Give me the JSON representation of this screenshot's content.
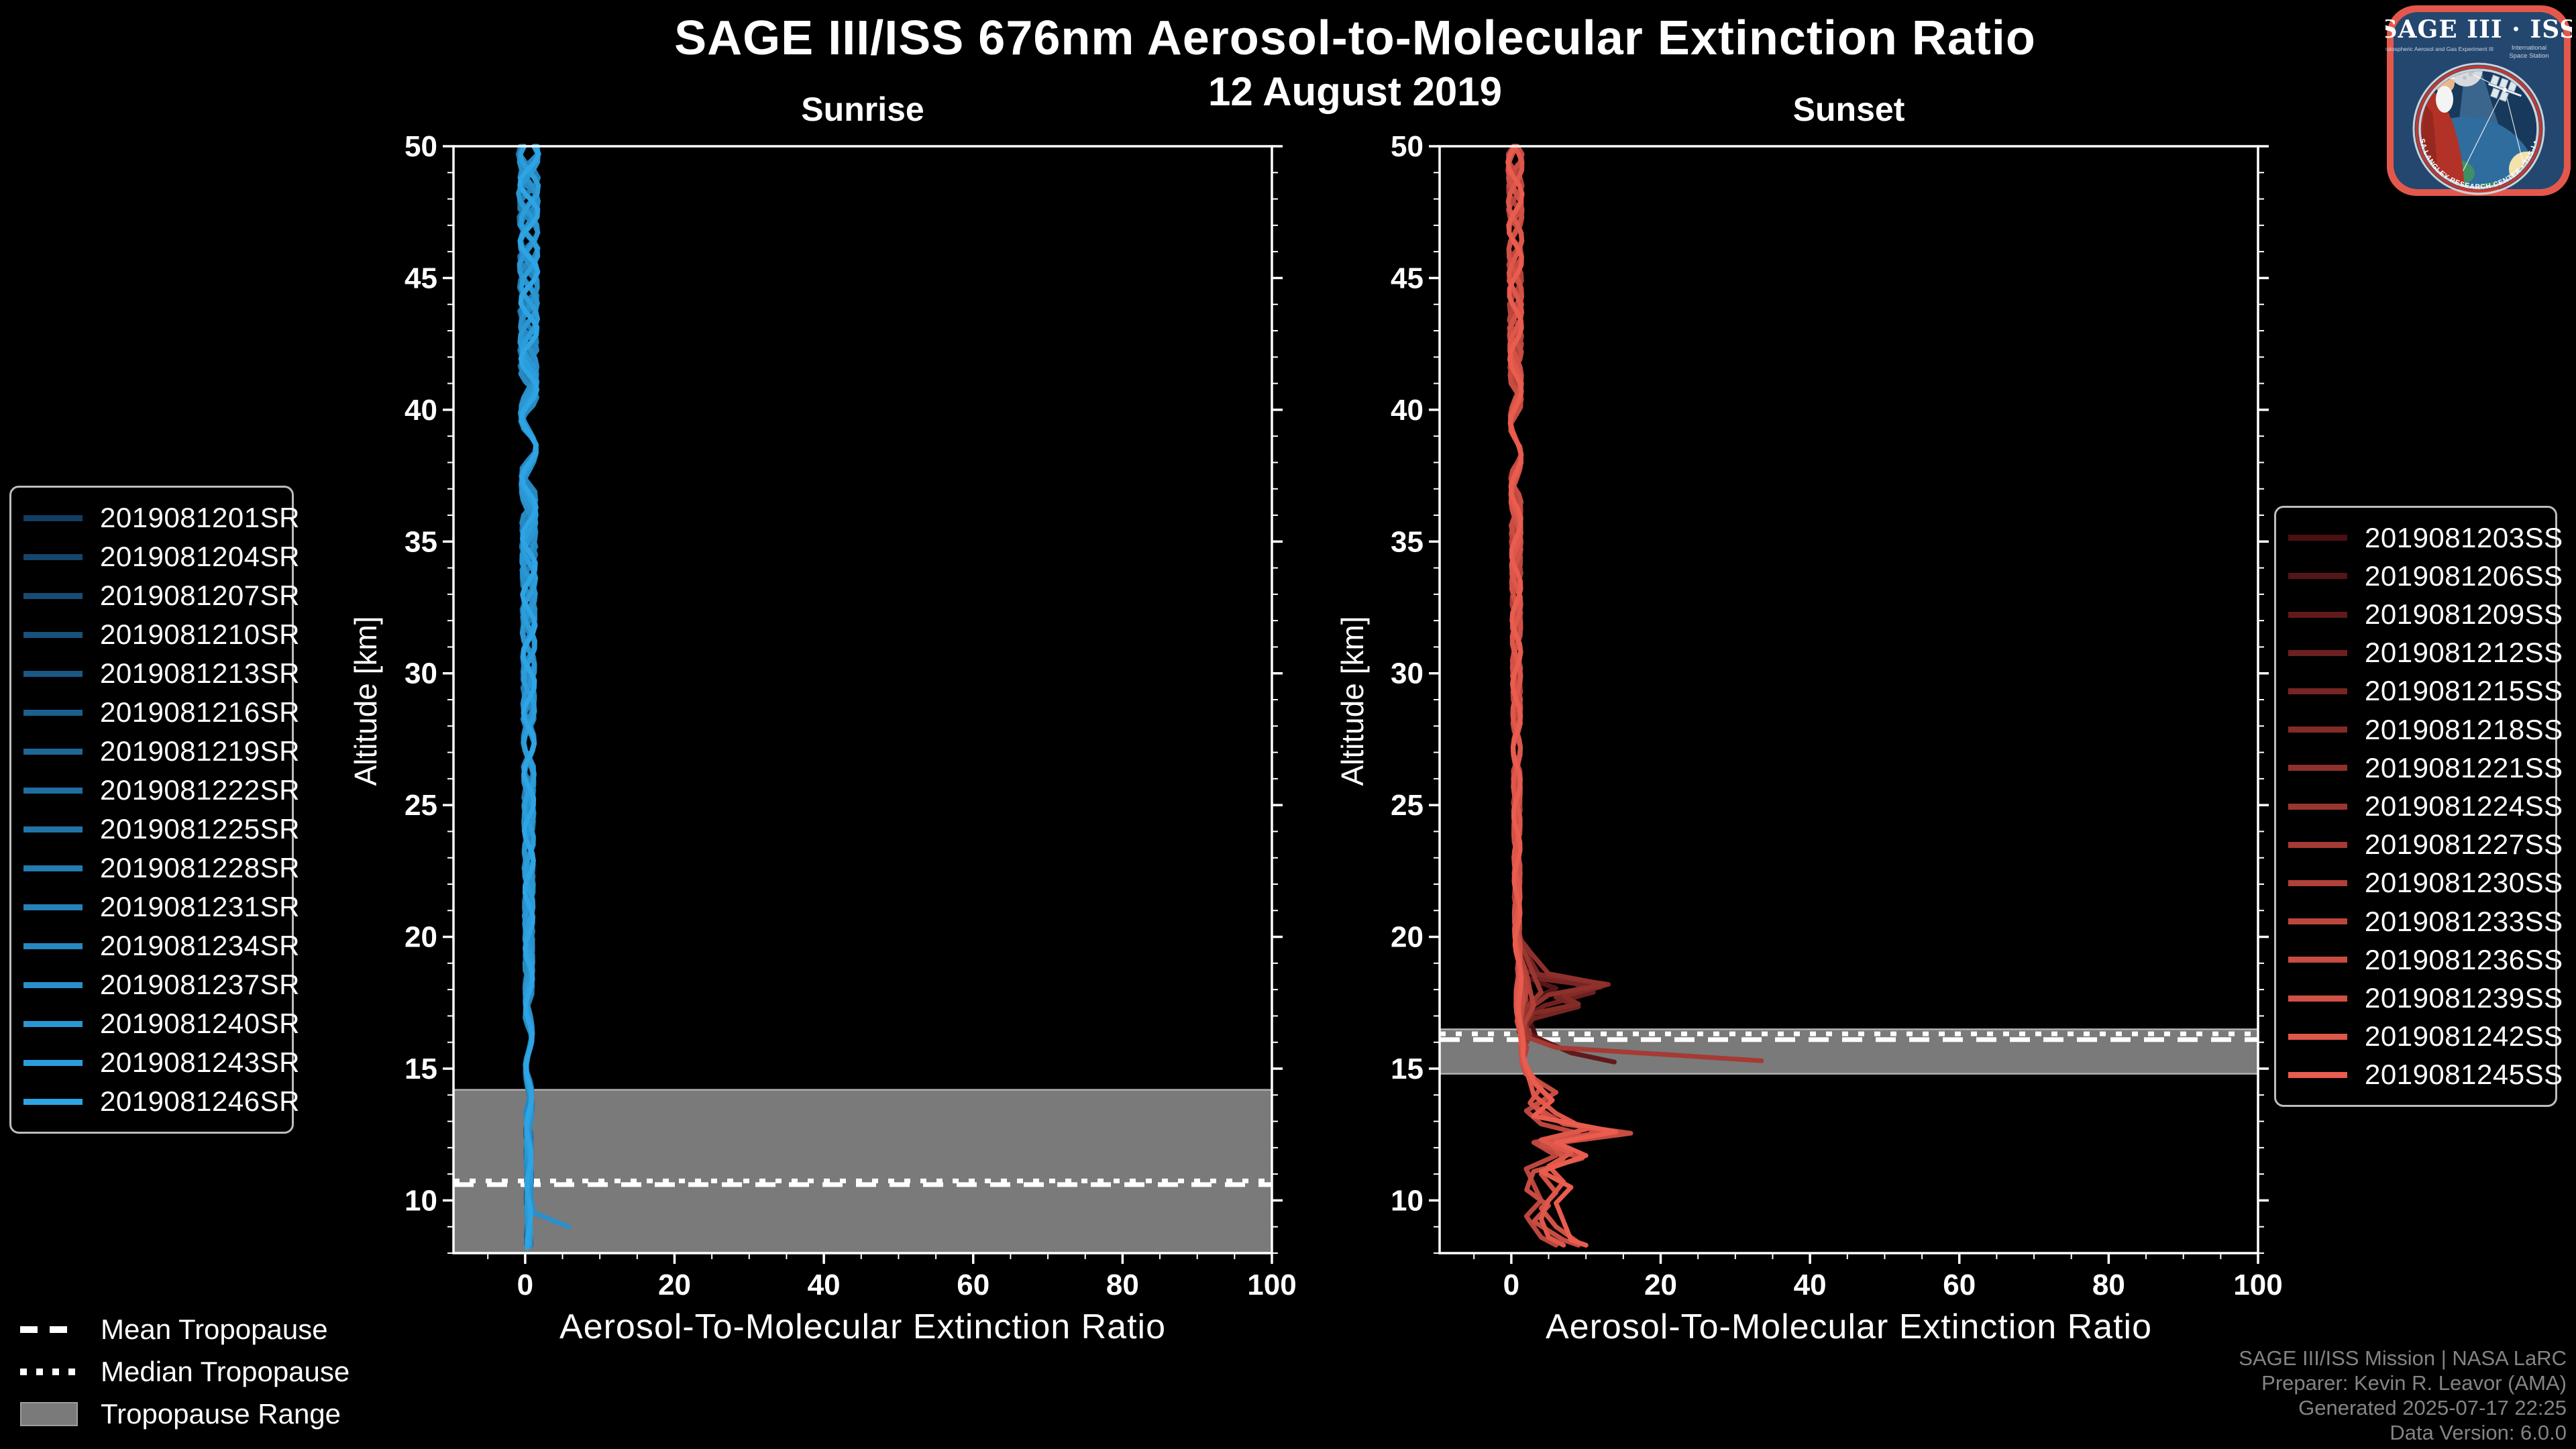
{
  "header": {
    "title": "SAGE III/ISS 676nm Aerosol-to-Molecular Extinction Ratio",
    "subtitle": "12 August 2019"
  },
  "footer": {
    "lines": [
      "SAGE III/ISS Mission | NASA LaRC",
      "Preparer: Kevin R. Leavor (AMA)",
      "Generated 2025-07-17 22:25",
      "Data Version: 6.0.0"
    ]
  },
  "logo": {
    "title": "SAGE III · ISS",
    "subtitle_left": "Stratospheric Aerosol and Gas Experiment III",
    "subtitle_right_1": "International",
    "subtitle_right_2": "Space Station",
    "arc_text": "• NASA LANGLEY RESEARCH CENTER • TAS-I • ESA"
  },
  "tropopause_legend": {
    "mean_label": "Mean Tropopause",
    "median_label": "Median Tropopause",
    "range_label": "Tropopause Range"
  },
  "colors": {
    "background": "#000000",
    "axis": "#ffffff",
    "tropopause_band": "#7a7a7a",
    "footer_text": "#848484"
  },
  "chart_data": [
    {
      "type": "line",
      "panel": "sunrise",
      "title": "Sunrise",
      "xlabel": "Aerosol-To-Molecular Extinction Ratio",
      "ylabel": "Altitude [km]",
      "xlim": [
        -9.6,
        100
      ],
      "ylim": [
        8.0,
        50
      ],
      "xticks": [
        0,
        20,
        40,
        60,
        80,
        100
      ],
      "yticks": [
        10,
        15,
        20,
        25,
        30,
        35,
        40,
        45,
        50
      ],
      "grid": false,
      "legend_position": "outside-left",
      "tropopause": {
        "mean_km": 10.6,
        "median_km": 10.74,
        "range_km": [
          8.0,
          14.2
        ]
      },
      "series": [
        {
          "label": "2019081201SR",
          "color": "#133e62",
          "profile": [
            [
              50,
              0.5
            ],
            [
              8.3,
              0.5
            ]
          ]
        },
        {
          "label": "2019081204SR",
          "color": "#15456b",
          "profile": [
            [
              50,
              0.4
            ],
            [
              8.3,
              0.6
            ]
          ]
        },
        {
          "label": "2019081207SR",
          "color": "#174c73",
          "profile": [
            [
              50,
              0.6
            ],
            [
              8.3,
              0.4
            ]
          ]
        },
        {
          "label": "2019081210SR",
          "color": "#18527c",
          "profile": [
            [
              50,
              0.5
            ],
            [
              8.3,
              0.5
            ]
          ]
        },
        {
          "label": "2019081213SR",
          "color": "#1a5985",
          "profile": [
            [
              50,
              0.4
            ],
            [
              8.3,
              0.5
            ]
          ]
        },
        {
          "label": "2019081216SR",
          "color": "#1c608d",
          "profile": [
            [
              50,
              0.6
            ],
            [
              8.3,
              0.5
            ]
          ]
        },
        {
          "label": "2019081219SR",
          "color": "#1e6796",
          "profile": [
            [
              50,
              0.5
            ],
            [
              8.3,
              0.4
            ]
          ]
        },
        {
          "label": "2019081222SR",
          "color": "#206e9f",
          "profile": [
            [
              50,
              0.5
            ],
            [
              8.3,
              0.6
            ]
          ]
        },
        {
          "label": "2019081225SR",
          "color": "#2174a7",
          "profile": [
            [
              50,
              0.4
            ],
            [
              8.3,
              0.5
            ]
          ]
        },
        {
          "label": "2019081228SR",
          "color": "#237bb0",
          "profile": [
            [
              50,
              0.6
            ],
            [
              8.3,
              0.5
            ]
          ]
        },
        {
          "label": "2019081231SR",
          "color": "#2582b9",
          "profile": [
            [
              50,
              0.5
            ],
            [
              8.3,
              0.5
            ]
          ]
        },
        {
          "label": "2019081234SR",
          "color": "#2789c1",
          "profile": [
            [
              50,
              0.5
            ],
            [
              8.3,
              0.4
            ]
          ]
        },
        {
          "label": "2019081237SR",
          "color": "#2990ca",
          "profile": [
            [
              50,
              0.5
            ],
            [
              10.2,
              0.5
            ],
            [
              9.55,
              1.0
            ],
            [
              9.0,
              5.8
            ]
          ]
        },
        {
          "label": "2019081240SR",
          "color": "#2a96d3",
          "profile": [
            [
              50,
              0.4
            ],
            [
              8.3,
              0.5
            ]
          ]
        },
        {
          "label": "2019081243SR",
          "color": "#2c9ddb",
          "profile": [
            [
              50,
              0.6
            ],
            [
              8.3,
              0.5
            ]
          ]
        },
        {
          "label": "2019081246SR",
          "color": "#2ea4e4",
          "profile": [
            [
              50,
              0.5
            ],
            [
              8.2,
              0.5
            ]
          ]
        }
      ]
    },
    {
      "type": "line",
      "panel": "sunset",
      "title": "Sunset",
      "xlabel": "Aerosol-To-Molecular Extinction Ratio",
      "ylabel": "Altitude [km]",
      "xlim": [
        -9.6,
        100
      ],
      "ylim": [
        8.0,
        50
      ],
      "xticks": [
        0,
        20,
        40,
        60,
        80,
        100
      ],
      "yticks": [
        10,
        15,
        20,
        25,
        30,
        35,
        40,
        45,
        50
      ],
      "grid": false,
      "legend_position": "outside-right",
      "tropopause": {
        "mean_km": 16.1,
        "median_km": 16.32,
        "range_km": [
          14.8,
          16.5
        ]
      },
      "series": [
        {
          "label": "2019081203SS",
          "color": "#4a0f12",
          "profile": [
            [
              50,
              0.5
            ],
            [
              20,
              0.8
            ],
            [
              18,
              1.4
            ],
            [
              17,
              2.2
            ],
            [
              16.3,
              3.2
            ]
          ]
        },
        {
          "label": "2019081206SS",
          "color": "#551516",
          "profile": [
            [
              50,
              0.5
            ],
            [
              20,
              0.8
            ],
            [
              18.5,
              1.5
            ],
            [
              18.05,
              6
            ],
            [
              17.6,
              2.5
            ],
            [
              16.8,
              1.8
            ],
            [
              16.2,
              1.2
            ]
          ]
        },
        {
          "label": "2019081209SS",
          "color": "#611a1b",
          "profile": [
            [
              50,
              0.5
            ],
            [
              20,
              0.8
            ],
            [
              17.5,
              1.5
            ],
            [
              16.9,
              2.8
            ],
            [
              16.4,
              1.8
            ],
            [
              16.1,
              4
            ],
            [
              15.6,
              8
            ],
            [
              15.25,
              13.8
            ]
          ]
        },
        {
          "label": "2019081212SS",
          "color": "#6c201f",
          "profile": [
            [
              50,
              0.5
            ],
            [
              20,
              0.8
            ],
            [
              18.7,
              2
            ],
            [
              18.3,
              8
            ],
            [
              17.9,
              11
            ],
            [
              17.4,
              4.5
            ],
            [
              17,
              2
            ],
            [
              16.5,
              1.4
            ]
          ]
        },
        {
          "label": "2019081215SS",
          "color": "#772523",
          "profile": [
            [
              50,
              0.5
            ],
            [
              20,
              0.8
            ],
            [
              18.4,
              4
            ],
            [
              18.1,
              12
            ],
            [
              17.7,
              6
            ],
            [
              17.35,
              9
            ],
            [
              16.9,
              3
            ],
            [
              16.4,
              1
            ]
          ]
        },
        {
          "label": "2019081218SS",
          "color": "#832b27",
          "profile": [
            [
              50,
              0.5
            ],
            [
              20,
              0.8
            ],
            [
              18.6,
              3
            ],
            [
              18.2,
              13
            ],
            [
              17.75,
              7
            ],
            [
              17.45,
              9
            ],
            [
              17.1,
              3
            ],
            [
              16.6,
              1.5
            ],
            [
              16.2,
              2
            ]
          ]
        },
        {
          "label": "2019081221SS",
          "color": "#8e302c",
          "profile": [
            [
              50,
              0.5
            ],
            [
              20,
              0.8
            ],
            [
              18.6,
              5
            ],
            [
              18.2,
              12.5
            ],
            [
              17.8,
              5
            ],
            [
              17.2,
              2
            ],
            [
              16.7,
              1.2
            ],
            [
              16.3,
              1.6
            ]
          ]
        },
        {
          "label": "2019081224SS",
          "color": "#9a3630",
          "profile": [
            [
              50,
              0.5
            ],
            [
              20,
              0.8
            ],
            [
              17.9,
              4
            ],
            [
              17.3,
              2
            ],
            [
              16.8,
              1.5
            ],
            [
              16.3,
              2.5
            ],
            [
              16,
              2
            ]
          ]
        },
        {
          "label": "2019081227SS",
          "color": "#a53b34",
          "profile": [
            [
              50,
              0.5
            ],
            [
              20,
              0.8
            ],
            [
              17.6,
              2
            ],
            [
              17,
              1.2
            ],
            [
              16.6,
              1.6
            ],
            [
              16.2,
              2
            ],
            [
              15.8,
              6
            ],
            [
              15.3,
              33.5
            ]
          ]
        },
        {
          "label": "2019081230SS",
          "color": "#b04139",
          "profile": [
            [
              50,
              0.5
            ],
            [
              20,
              0.8
            ],
            [
              17.4,
              3
            ],
            [
              16.8,
              2
            ],
            [
              16.2,
              1
            ],
            [
              15.8,
              2
            ],
            [
              15.2,
              1.5
            ]
          ]
        },
        {
          "label": "2019081233SS",
          "color": "#bc463d",
          "profile": [
            [
              50,
              0.5
            ],
            [
              20,
              0.8
            ],
            [
              18,
              2
            ],
            [
              16.8,
              1
            ],
            [
              15.5,
              1.5
            ],
            [
              14.6,
              2.5
            ],
            [
              13.9,
              5
            ],
            [
              13.4,
              2
            ],
            [
              12.9,
              4
            ],
            [
              12.55,
              9
            ],
            [
              12.2,
              3
            ],
            [
              11.7,
              6
            ],
            [
              11.2,
              2
            ],
            [
              10.6,
              3
            ],
            [
              10,
              4
            ],
            [
              9.4,
              2
            ],
            [
              8.6,
              4
            ],
            [
              8.3,
              6
            ]
          ]
        },
        {
          "label": "2019081236SS",
          "color": "#c74c41",
          "profile": [
            [
              50,
              0.5
            ],
            [
              20,
              0.8
            ],
            [
              17,
              1.5
            ],
            [
              15.8,
              1
            ],
            [
              14.8,
              2
            ],
            [
              14.1,
              6
            ],
            [
              13.6,
              3
            ],
            [
              12.9,
              7
            ],
            [
              12.55,
              16
            ],
            [
              12.1,
              4
            ],
            [
              11.6,
              9.5
            ],
            [
              11.1,
              3
            ],
            [
              10.4,
              2
            ],
            [
              9.8,
              5
            ],
            [
              9.2,
              3
            ],
            [
              8.5,
              7
            ],
            [
              8.3,
              9
            ]
          ]
        },
        {
          "label": "2019081239SS",
          "color": "#d25145",
          "profile": [
            [
              50,
              0.5
            ],
            [
              20,
              0.8
            ],
            [
              16.5,
              1
            ],
            [
              15.2,
              1.5
            ],
            [
              14.3,
              4
            ],
            [
              13.7,
              2.5
            ],
            [
              13.1,
              5
            ],
            [
              12.6,
              12
            ],
            [
              12.2,
              5
            ],
            [
              11.6,
              7
            ],
            [
              11,
              4
            ],
            [
              10.3,
              6
            ],
            [
              9.7,
              4
            ],
            [
              9,
              6
            ],
            [
              8.4,
              9
            ],
            [
              8.3,
              10
            ]
          ]
        },
        {
          "label": "2019081242SS",
          "color": "#de574a",
          "profile": [
            [
              50,
              0.5
            ],
            [
              20,
              0.8
            ],
            [
              16,
              1
            ],
            [
              15,
              2
            ],
            [
              14,
              3
            ],
            [
              13.3,
              6
            ],
            [
              12.7,
              10
            ],
            [
              12.3,
              4
            ],
            [
              11.8,
              8
            ],
            [
              11.3,
              5
            ],
            [
              10.7,
              7
            ],
            [
              10,
              5
            ],
            [
              9.3,
              4
            ],
            [
              8.6,
              5
            ],
            [
              8.3,
              7
            ]
          ]
        },
        {
          "label": "2019081245SS",
          "color": "#e95c4e",
          "profile": [
            [
              50,
              0.5
            ],
            [
              20,
              0.8
            ],
            [
              15.5,
              1.5
            ],
            [
              14.5,
              3
            ],
            [
              13.8,
              5.5
            ],
            [
              13.2,
              3
            ],
            [
              12.6,
              14
            ],
            [
              12.2,
              6
            ],
            [
              11.7,
              10
            ],
            [
              11.1,
              4
            ],
            [
              10.5,
              8
            ],
            [
              9.9,
              6
            ],
            [
              9.2,
              7
            ],
            [
              8.5,
              8
            ],
            [
              8.3,
              10
            ]
          ]
        }
      ]
    }
  ]
}
